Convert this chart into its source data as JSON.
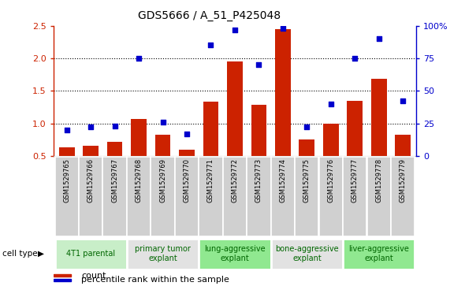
{
  "title": "GDS5666 / A_51_P425048",
  "samples": [
    "GSM1529765",
    "GSM1529766",
    "GSM1529767",
    "GSM1529768",
    "GSM1529769",
    "GSM1529770",
    "GSM1529771",
    "GSM1529772",
    "GSM1529773",
    "GSM1529774",
    "GSM1529775",
    "GSM1529776",
    "GSM1529777",
    "GSM1529778",
    "GSM1529779"
  ],
  "bar_values": [
    0.63,
    0.66,
    0.72,
    1.07,
    0.82,
    0.6,
    1.33,
    1.95,
    1.29,
    2.45,
    0.75,
    1.0,
    1.35,
    1.68,
    0.82
  ],
  "dot_values": [
    20,
    22,
    23,
    75,
    26,
    17,
    85,
    97,
    70,
    98,
    22,
    40,
    75,
    90,
    42
  ],
  "groups": [
    {
      "label": "4T1 parental",
      "start": 0,
      "end": 2,
      "color": "#c8eec8"
    },
    {
      "label": "primary tumor\nexplant",
      "start": 3,
      "end": 5,
      "color": "#e2e2e2"
    },
    {
      "label": "lung-aggressive\nexplant",
      "start": 6,
      "end": 8,
      "color": "#90e890"
    },
    {
      "label": "bone-aggressive\nexplant",
      "start": 9,
      "end": 11,
      "color": "#e2e2e2"
    },
    {
      "label": "liver-aggressive\nexplant",
      "start": 12,
      "end": 14,
      "color": "#90e890"
    }
  ],
  "ylim_left": [
    0.5,
    2.5
  ],
  "ylim_right": [
    0,
    100
  ],
  "yticks_left": [
    0.5,
    1.0,
    1.5,
    2.0,
    2.5
  ],
  "yticks_right": [
    0,
    25,
    50,
    75,
    100
  ],
  "bar_color": "#cc2200",
  "dot_color": "#0000cc",
  "left_axis_color": "#cc2200",
  "right_axis_color": "#0000cc",
  "tick_box_color": "#d0d0d0",
  "grid_color": "black",
  "cell_type_label": "cell type",
  "legend_items": [
    {
      "color": "#cc2200",
      "label": "count"
    },
    {
      "color": "#0000cc",
      "label": "percentile rank within the sample"
    }
  ]
}
